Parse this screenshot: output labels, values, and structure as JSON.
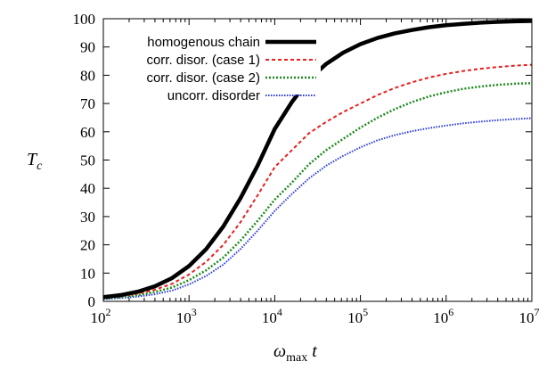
{
  "chart_data": {
    "type": "line",
    "title": "",
    "xlabel": "ω_max t",
    "xlabel_parts": {
      "symbol": "ω",
      "subscript": "max",
      "variable": "t"
    },
    "ylabel": "T_c",
    "ylabel_parts": {
      "symbol": "T",
      "subscript": "c"
    },
    "x_scale": "log",
    "xlim": [
      100,
      10000000
    ],
    "ylim": [
      0,
      100
    ],
    "grid": false,
    "legend_position": "top-left",
    "x_ticks": [
      {
        "value": 100,
        "base": "10",
        "exp": "2"
      },
      {
        "value": 1000,
        "base": "10",
        "exp": "3"
      },
      {
        "value": 10000,
        "base": "10",
        "exp": "4"
      },
      {
        "value": 100000,
        "base": "10",
        "exp": "5"
      },
      {
        "value": 1000000,
        "base": "10",
        "exp": "6"
      },
      {
        "value": 10000000,
        "base": "10",
        "exp": "7"
      }
    ],
    "y_ticks": [
      "0",
      "10",
      "20",
      "30",
      "40",
      "50",
      "60",
      "70",
      "80",
      "90",
      "100"
    ],
    "series": [
      {
        "name": "homogenous chain",
        "color": "#000000",
        "style": "solid-thick",
        "x": [
          100,
          158,
          251,
          398,
          631,
          1000,
          1585,
          2512,
          3981,
          6310,
          10000,
          15849,
          25119,
          39811,
          63096,
          100000,
          158489,
          251189,
          398107,
          630957,
          1000000,
          1584893,
          2511886,
          3981072,
          6309573,
          10000000
        ],
        "y": [
          1.5,
          2.2,
          3.4,
          5.3,
          8.2,
          12.5,
          18.5,
          26.5,
          36.5,
          48.0,
          61.0,
          70.5,
          78.5,
          84.0,
          88.0,
          91.0,
          93.2,
          94.8,
          96.0,
          97.0,
          97.7,
          98.2,
          98.6,
          98.9,
          99.1,
          99.2
        ]
      },
      {
        "name": "corr. disor. (case 1)",
        "color": "#e8201e",
        "style": "dashed",
        "x": [
          100,
          158,
          251,
          398,
          631,
          1000,
          1585,
          2512,
          3981,
          6310,
          10000,
          15849,
          25119,
          39811,
          63096,
          100000,
          158489,
          251189,
          398107,
          630957,
          1000000,
          1584893,
          2511886,
          3981072,
          6309573,
          10000000
        ],
        "y": [
          1.2,
          1.8,
          2.7,
          4.1,
          6.2,
          9.5,
          14.0,
          20.0,
          28.0,
          37.5,
          47.5,
          53.5,
          59.5,
          63.5,
          67.0,
          70.0,
          73.0,
          75.5,
          77.5,
          79.2,
          80.5,
          81.5,
          82.3,
          82.9,
          83.4,
          83.7
        ]
      },
      {
        "name": "corr. disor. (case 2)",
        "color": "#1e8a1e",
        "style": "dotted",
        "x": [
          100,
          158,
          251,
          398,
          631,
          1000,
          1585,
          2512,
          3981,
          6310,
          10000,
          15849,
          25119,
          39811,
          63096,
          100000,
          158489,
          251189,
          398107,
          630957,
          1000000,
          1584893,
          2511886,
          3981072,
          6309573,
          10000000
        ],
        "y": [
          1.0,
          1.5,
          2.2,
          3.3,
          4.9,
          7.5,
          11.0,
          15.5,
          21.5,
          28.5,
          36.0,
          42.0,
          48.5,
          53.5,
          57.5,
          61.5,
          65.0,
          68.0,
          70.5,
          72.5,
          74.0,
          75.2,
          76.0,
          76.6,
          77.0,
          77.2
        ]
      },
      {
        "name": "uncorr. disorder",
        "color": "#2a3ad8",
        "style": "dotted-fine",
        "x": [
          100,
          158,
          251,
          398,
          631,
          1000,
          1585,
          2512,
          3981,
          6310,
          10000,
          15849,
          25119,
          39811,
          63096,
          100000,
          158489,
          251189,
          398107,
          630957,
          1000000,
          1584893,
          2511886,
          3981072,
          6309573,
          10000000
        ],
        "y": [
          0.8,
          1.2,
          1.7,
          2.5,
          3.8,
          6.0,
          9.0,
          13.0,
          18.5,
          25.0,
          32.0,
          38.0,
          43.5,
          48.0,
          51.5,
          54.5,
          57.0,
          58.8,
          60.2,
          61.3,
          62.2,
          63.0,
          63.6,
          64.1,
          64.5,
          64.8
        ]
      }
    ]
  }
}
